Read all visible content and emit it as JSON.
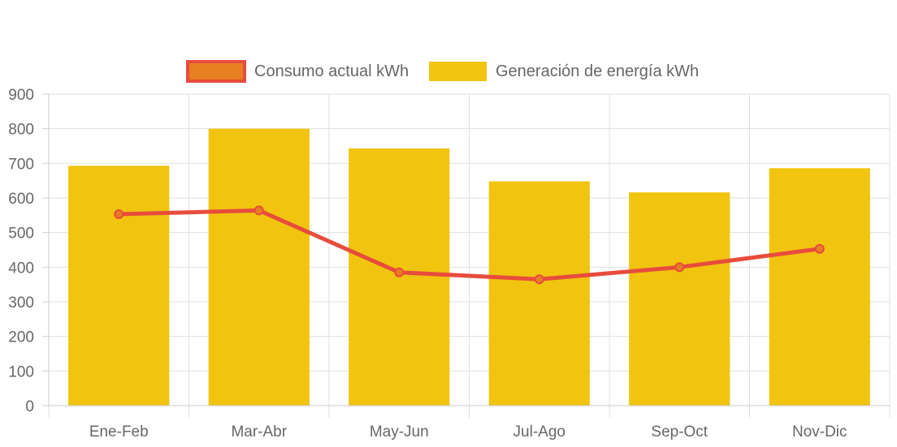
{
  "chart_data": {
    "type": "bar",
    "categories": [
      "Ene-Feb",
      "Mar-Abr",
      "May-Jun",
      "Jul-Ago",
      "Sep-Oct",
      "Nov-Dic"
    ],
    "ylim": [
      0,
      900
    ],
    "yticks": [
      0,
      100,
      200,
      300,
      400,
      500,
      600,
      700,
      800,
      900
    ],
    "grid": true,
    "legend_position": "top",
    "series": [
      {
        "name": "Consumo actual kWh",
        "type": "line",
        "values": [
          553,
          564,
          385,
          365,
          400,
          453
        ],
        "color": "#e74c3c",
        "fill": "#e67e22"
      },
      {
        "name": "Generación de energía kWh",
        "type": "bar",
        "values": [
          693,
          800,
          743,
          648,
          616,
          686
        ],
        "color": "#f1c40f"
      }
    ]
  }
}
